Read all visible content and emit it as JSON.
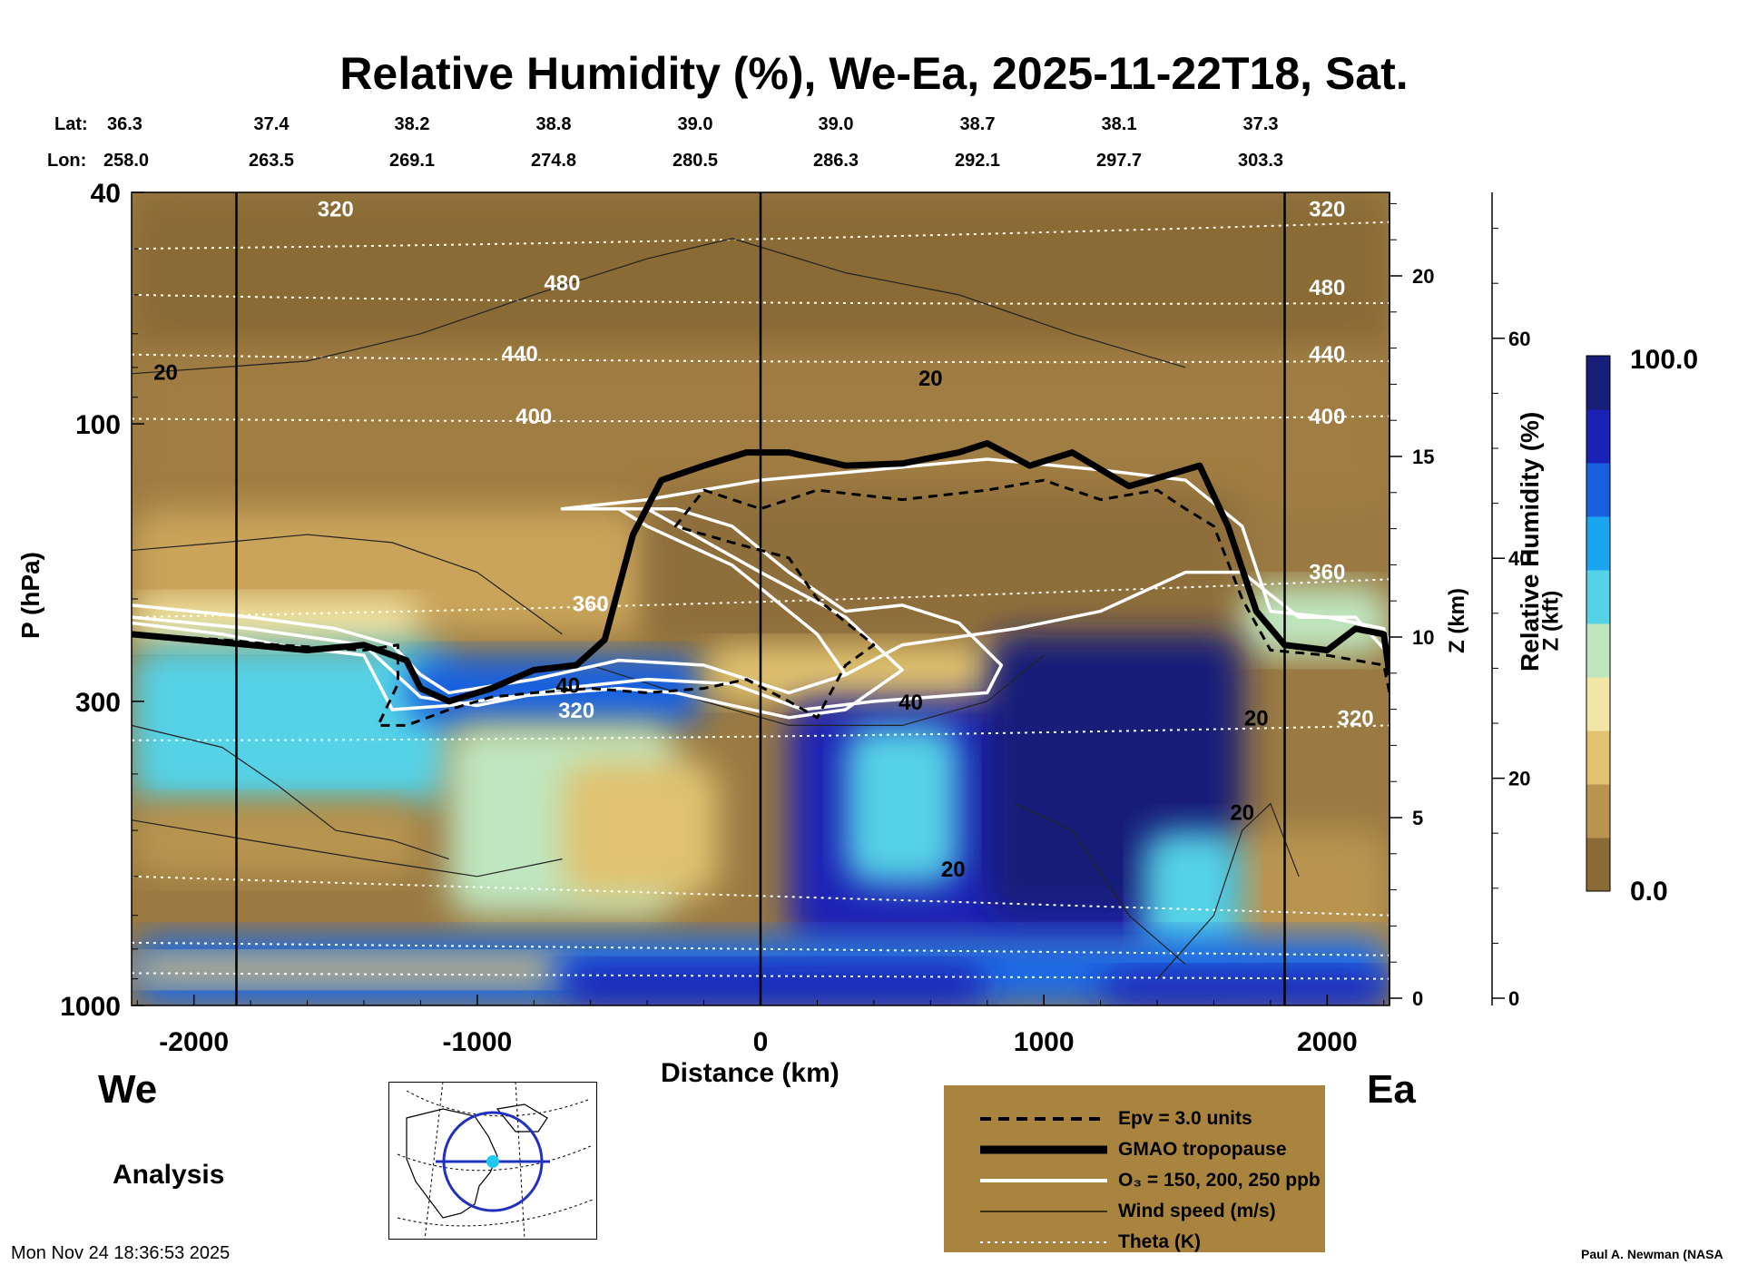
{
  "chart_data": {
    "type": "heatmap",
    "title": "Relative Humidity (%), We-Ea, 2025-11-22T18, Sat.",
    "xlabel": "Distance (km)",
    "ylabel": "P (hPa)",
    "xlim": [
      -2220,
      2220
    ],
    "ylim": [
      1000,
      40
    ],
    "yscale": "log",
    "x_ticks": [
      -2000,
      -1000,
      0,
      1000,
      2000
    ],
    "y_ticks": [
      1000,
      300,
      100,
      40
    ],
    "z_km_ticks": [
      0,
      5,
      10,
      15,
      20
    ],
    "z_kft_ticks": [
      0,
      20,
      40,
      60
    ],
    "z_km_label": "Z (km)",
    "z_kft_label": "Z (kft)",
    "lat_label": "Lat:",
    "lon_label": "Lon:",
    "lats": [
      "36.3",
      "37.4",
      "38.2",
      "38.8",
      "39.0",
      "39.0",
      "38.7",
      "38.1",
      "37.3"
    ],
    "lons": [
      "258.0",
      "263.5",
      "269.1",
      "274.8",
      "280.5",
      "286.3",
      "292.1",
      "297.7",
      "303.3"
    ],
    "vertical_lines_km": [
      -1850,
      0,
      1850
    ],
    "colorbar": {
      "label": "Relative Humidity (%)",
      "min": "0.0",
      "max": "100.0",
      "colors": [
        "#8a6a35",
        "#b89450",
        "#e0c270",
        "#f2e6a6",
        "#bfe6bf",
        "#55d2e6",
        "#1aa6ee",
        "#1860e0",
        "#1a22b5",
        "#161e78"
      ]
    },
    "tropopause": [
      [
        -2220,
        230
      ],
      [
        -1800,
        240
      ],
      [
        -1600,
        245
      ],
      [
        -1400,
        240
      ],
      [
        -1250,
        255
      ],
      [
        -1200,
        285
      ],
      [
        -1100,
        300
      ],
      [
        -950,
        285
      ],
      [
        -800,
        265
      ],
      [
        -650,
        260
      ],
      [
        -550,
        235
      ],
      [
        -450,
        155
      ],
      [
        -350,
        125
      ],
      [
        -200,
        118
      ],
      [
        -50,
        112
      ],
      [
        100,
        112
      ],
      [
        300,
        118
      ],
      [
        500,
        117
      ],
      [
        700,
        112
      ],
      [
        800,
        108
      ],
      [
        950,
        118
      ],
      [
        1100,
        112
      ],
      [
        1300,
        128
      ],
      [
        1450,
        122
      ],
      [
        1550,
        118
      ],
      [
        1650,
        150
      ],
      [
        1750,
        210
      ],
      [
        1850,
        240
      ],
      [
        2000,
        245
      ],
      [
        2100,
        225
      ],
      [
        2200,
        230
      ],
      [
        2220,
        270
      ]
    ],
    "epv": [
      [
        -2220,
        230
      ],
      [
        -1900,
        235
      ],
      [
        -1700,
        240
      ],
      [
        -1400,
        245
      ],
      [
        -1280,
        240
      ],
      [
        -1280,
        280
      ],
      [
        -1350,
        330
      ],
      [
        -1250,
        330
      ],
      [
        -1100,
        310
      ],
      [
        -950,
        295
      ],
      [
        -800,
        290
      ],
      [
        -600,
        285
      ],
      [
        -400,
        290
      ],
      [
        -200,
        285
      ],
      [
        -50,
        275
      ],
      [
        100,
        300
      ],
      [
        200,
        320
      ],
      [
        300,
        260
      ],
      [
        400,
        240
      ],
      [
        200,
        200
      ],
      [
        100,
        170
      ],
      [
        -100,
        160
      ],
      [
        -300,
        150
      ],
      [
        -200,
        130
      ],
      [
        0,
        140
      ],
      [
        200,
        130
      ],
      [
        500,
        135
      ],
      [
        800,
        130
      ],
      [
        1000,
        125
      ],
      [
        1200,
        135
      ],
      [
        1400,
        130
      ],
      [
        1500,
        140
      ],
      [
        1600,
        150
      ],
      [
        1700,
        200
      ],
      [
        1800,
        245
      ],
      [
        2000,
        250
      ],
      [
        2200,
        260
      ],
      [
        2220,
        290
      ]
    ],
    "ozone_150": [
      [
        -2220,
        205
      ],
      [
        -1800,
        215
      ],
      [
        -1500,
        225
      ],
      [
        -1300,
        240
      ],
      [
        -1200,
        270
      ],
      [
        -1100,
        290
      ],
      [
        -800,
        275
      ],
      [
        -500,
        255
      ],
      [
        -200,
        260
      ],
      [
        100,
        290
      ],
      [
        300,
        270
      ],
      [
        500,
        240
      ],
      [
        900,
        225
      ],
      [
        1200,
        210
      ],
      [
        1500,
        180
      ],
      [
        1700,
        180
      ],
      [
        1900,
        215
      ],
      [
        2100,
        215
      ],
      [
        2220,
        250
      ]
    ],
    "ozone_200": [
      [
        -2220,
        215
      ],
      [
        -1800,
        225
      ],
      [
        -1400,
        240
      ],
      [
        -1200,
        295
      ],
      [
        -1000,
        305
      ],
      [
        -700,
        285
      ],
      [
        -400,
        275
      ],
      [
        -100,
        280
      ],
      [
        150,
        310
      ],
      [
        400,
        300
      ],
      [
        800,
        290
      ],
      [
        850,
        260
      ],
      [
        700,
        220
      ],
      [
        500,
        205
      ],
      [
        300,
        210
      ],
      [
        100,
        180
      ],
      [
        -100,
        150
      ],
      [
        -300,
        140
      ],
      [
        -500,
        140
      ],
      [
        -400,
        150
      ],
      [
        -100,
        175
      ],
      [
        200,
        230
      ],
      [
        300,
        270
      ]
    ],
    "ozone_250": [
      [
        -2220,
        220
      ],
      [
        -1900,
        230
      ],
      [
        -1700,
        240
      ],
      [
        -1400,
        250
      ],
      [
        -1300,
        310
      ],
      [
        -1100,
        305
      ],
      [
        -900,
        295
      ],
      [
        -700,
        290
      ],
      [
        -500,
        285
      ],
      [
        -300,
        290
      ],
      [
        -100,
        305
      ],
      [
        100,
        320
      ],
      [
        300,
        310
      ],
      [
        500,
        265
      ],
      [
        300,
        215
      ],
      [
        0,
        180
      ],
      [
        -400,
        140
      ],
      [
        -700,
        140
      ],
      [
        -400,
        135
      ],
      [
        0,
        125
      ],
      [
        400,
        120
      ],
      [
        800,
        115
      ],
      [
        1200,
        120
      ],
      [
        1500,
        125
      ],
      [
        1700,
        150
      ],
      [
        1800,
        210
      ],
      [
        2000,
        215
      ],
      [
        2200,
        225
      ],
      [
        2220,
        240
      ]
    ],
    "ozone_labels": [
      "360",
      "320",
      "20"
    ],
    "theta_levels": [
      {
        "value": "320",
        "p": [
          50,
          45
        ]
      },
      {
        "value": "480",
        "p": [
          60,
          62
        ]
      },
      {
        "value": "440",
        "p": [
          76,
          78
        ]
      },
      {
        "value": "400",
        "p": [
          98,
          97
        ]
      },
      {
        "value": "360",
        "p": [
          215,
          185
        ]
      },
      {
        "value": "320",
        "p": [
          350,
          330
        ]
      }
    ],
    "wind_labels": [
      "20",
      "20",
      "40",
      "40",
      "20",
      "20",
      "20"
    ],
    "panel_left_label": "We",
    "panel_right_label": "Ea",
    "run_type": "Analysis",
    "timestamp": "Mon Nov 24 18:36:53 2025",
    "credit": "Paul A. Newman (NASA",
    "legend": [
      {
        "label": "Epv = 3.0 units",
        "style": "dashed"
      },
      {
        "label": "GMAO tropopause",
        "style": "thick"
      },
      {
        "label": "O₃ = 150, 200, 250 ppb",
        "style": "white"
      },
      {
        "label": "Wind speed (m/s)",
        "style": "thin"
      },
      {
        "label": "Theta (K)",
        "style": "dotted"
      }
    ]
  }
}
